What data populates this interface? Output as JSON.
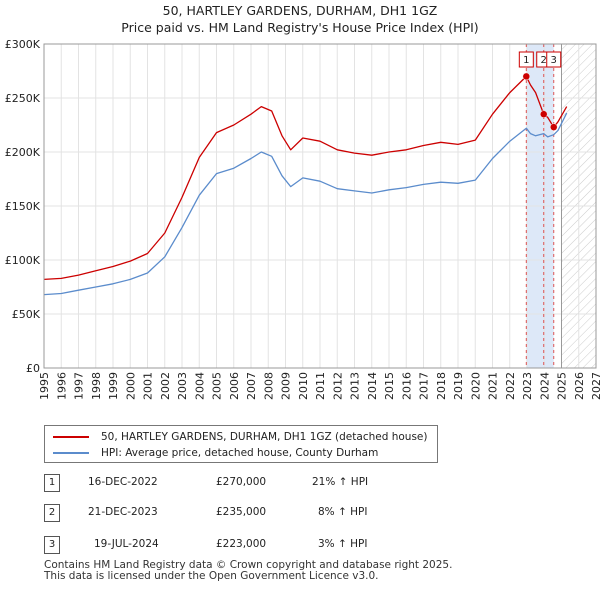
{
  "title_line1": "50, HARTLEY GARDENS, DURHAM, DH1 1GZ",
  "title_line2": "Price paid vs. HM Land Registry's House Price Index (HPI)",
  "chart_data": {
    "type": "line",
    "xlim": [
      1995,
      2027
    ],
    "ylim": [
      0,
      300000
    ],
    "x_ticks": [
      "1995",
      "1996",
      "1997",
      "1998",
      "1999",
      "2000",
      "2001",
      "2002",
      "2003",
      "2004",
      "2005",
      "2006",
      "2007",
      "2008",
      "2009",
      "2010",
      "2011",
      "2012",
      "2013",
      "2014",
      "2015",
      "2016",
      "2017",
      "2018",
      "2019",
      "2020",
      "2021",
      "2022",
      "2023",
      "2024",
      "2025",
      "2026",
      "2027"
    ],
    "y_ticks": [
      {
        "value": 0,
        "label": "£0"
      },
      {
        "value": 50000,
        "label": "£50K"
      },
      {
        "value": 100000,
        "label": "£100K"
      },
      {
        "value": 150000,
        "label": "£150K"
      },
      {
        "value": 200000,
        "label": "£200K"
      },
      {
        "value": 250000,
        "label": "£250K"
      },
      {
        "value": 300000,
        "label": "£300K"
      }
    ],
    "grid": true,
    "forecast_start": 2025.0,
    "series": [
      {
        "name": "50, HARTLEY GARDENS, DURHAM, DH1 1GZ (detached house)",
        "color": "#cc0000",
        "points": [
          [
            1995.0,
            82000
          ],
          [
            1996.0,
            83000
          ],
          [
            1997.0,
            86000
          ],
          [
            1998.0,
            90000
          ],
          [
            1999.0,
            94000
          ],
          [
            2000.0,
            99000
          ],
          [
            2001.0,
            106000
          ],
          [
            2002.0,
            125000
          ],
          [
            2003.0,
            158000
          ],
          [
            2004.0,
            195000
          ],
          [
            2005.0,
            218000
          ],
          [
            2006.0,
            225000
          ],
          [
            2007.0,
            235000
          ],
          [
            2007.6,
            242000
          ],
          [
            2008.2,
            238000
          ],
          [
            2008.8,
            215000
          ],
          [
            2009.3,
            202000
          ],
          [
            2010.0,
            213000
          ],
          [
            2011.0,
            210000
          ],
          [
            2012.0,
            202000
          ],
          [
            2013.0,
            199000
          ],
          [
            2014.0,
            197000
          ],
          [
            2015.0,
            200000
          ],
          [
            2016.0,
            202000
          ],
          [
            2017.0,
            206000
          ],
          [
            2018.0,
            209000
          ],
          [
            2019.0,
            207000
          ],
          [
            2020.0,
            211000
          ],
          [
            2021.0,
            235000
          ],
          [
            2022.0,
            255000
          ],
          [
            2022.96,
            270000
          ],
          [
            2023.2,
            262000
          ],
          [
            2023.5,
            255000
          ],
          [
            2023.97,
            235000
          ],
          [
            2024.2,
            232000
          ],
          [
            2024.55,
            223000
          ],
          [
            2024.8,
            228000
          ],
          [
            2025.3,
            242000
          ]
        ]
      },
      {
        "name": "HPI: Average price, detached house, County Durham",
        "color": "#5b8ccc",
        "points": [
          [
            1995.0,
            68000
          ],
          [
            1996.0,
            69000
          ],
          [
            1997.0,
            72000
          ],
          [
            1998.0,
            75000
          ],
          [
            1999.0,
            78000
          ],
          [
            2000.0,
            82000
          ],
          [
            2001.0,
            88000
          ],
          [
            2002.0,
            103000
          ],
          [
            2003.0,
            130000
          ],
          [
            2004.0,
            160000
          ],
          [
            2005.0,
            180000
          ],
          [
            2006.0,
            185000
          ],
          [
            2007.0,
            194000
          ],
          [
            2007.6,
            200000
          ],
          [
            2008.2,
            196000
          ],
          [
            2008.8,
            178000
          ],
          [
            2009.3,
            168000
          ],
          [
            2010.0,
            176000
          ],
          [
            2011.0,
            173000
          ],
          [
            2012.0,
            166000
          ],
          [
            2013.0,
            164000
          ],
          [
            2014.0,
            162000
          ],
          [
            2015.0,
            165000
          ],
          [
            2016.0,
            167000
          ],
          [
            2017.0,
            170000
          ],
          [
            2018.0,
            172000
          ],
          [
            2019.0,
            171000
          ],
          [
            2020.0,
            174000
          ],
          [
            2021.0,
            194000
          ],
          [
            2022.0,
            210000
          ],
          [
            2022.96,
            222000
          ],
          [
            2023.2,
            217000
          ],
          [
            2023.5,
            215000
          ],
          [
            2023.97,
            217000
          ],
          [
            2024.2,
            214000
          ],
          [
            2024.55,
            216000
          ],
          [
            2024.8,
            220000
          ],
          [
            2025.3,
            236000
          ]
        ]
      }
    ],
    "sales": [
      {
        "label": "1",
        "x": 2022.96,
        "price": 270000
      },
      {
        "label": "2",
        "x": 2023.97,
        "price": 235000
      },
      {
        "label": "3",
        "x": 2024.55,
        "price": 223000
      }
    ]
  },
  "legend": {
    "property_label": "50, HARTLEY GARDENS, DURHAM, DH1 1GZ (detached house)",
    "hpi_label": "HPI: Average price, detached house, County Durham"
  },
  "transactions": [
    {
      "num": "1",
      "date": "16-DEC-2022",
      "price": "£270,000",
      "hpi": "21% ↑ HPI"
    },
    {
      "num": "2",
      "date": "21-DEC-2023",
      "price": "£235,000",
      "hpi": "8% ↑ HPI"
    },
    {
      "num": "3",
      "date": "19-JUL-2024",
      "price": "£223,000",
      "hpi": "3% ↑ HPI"
    }
  ],
  "footer": {
    "line1": "Contains HM Land Registry data © Crown copyright and database right 2025.",
    "line2": "This data is licensed under the Open Government Licence v3.0."
  },
  "colors": {
    "property": "#cc0000",
    "hpi": "#5b8ccc",
    "sale_band": "#dde8f8",
    "grid": "#e3e3e3"
  }
}
